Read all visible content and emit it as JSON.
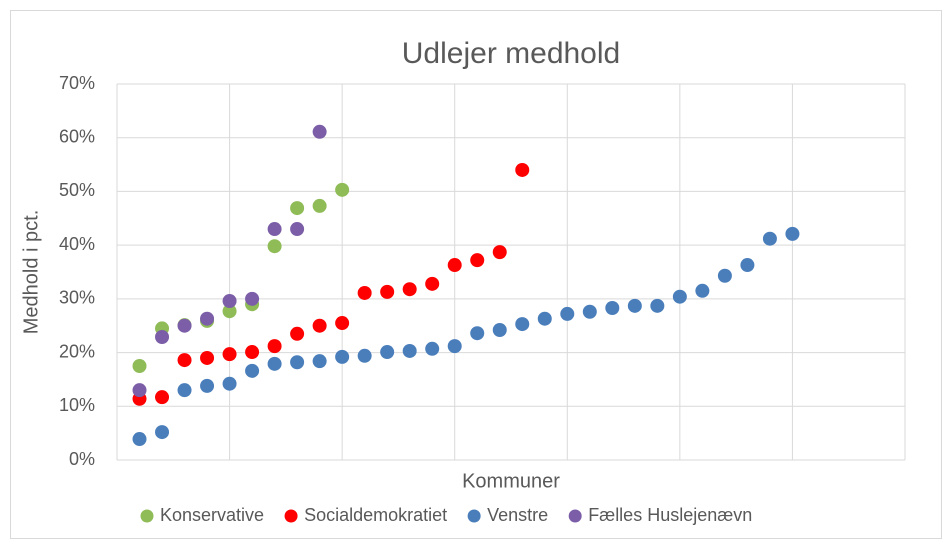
{
  "chart_data": {
    "type": "scatter",
    "title": "Udlejer medhold",
    "x_label": "Kommuner",
    "y_label": "Medhold i pct.",
    "xlim": [
      0,
      35
    ],
    "xticks": [
      0,
      5,
      10,
      15,
      20,
      25,
      30,
      35
    ],
    "ylim": [
      0,
      70
    ],
    "yticks": [
      {
        "value": 0,
        "label": "0%"
      },
      {
        "value": 10,
        "label": "10%"
      },
      {
        "value": 20,
        "label": "20%"
      },
      {
        "value": 30,
        "label": "30%"
      },
      {
        "value": 40,
        "label": "40%"
      },
      {
        "value": 50,
        "label": "50%"
      },
      {
        "value": 60,
        "label": "60%"
      },
      {
        "value": 70,
        "label": "70%"
      }
    ],
    "grid": true,
    "legend": "bottom",
    "series": [
      {
        "name": "Konservative",
        "color": "#8fbc57",
        "x": [
          1,
          2,
          3,
          4,
          5,
          6,
          7,
          8,
          9,
          10
        ],
        "values": [
          17.5,
          24.5,
          25.1,
          25.9,
          27.7,
          29.0,
          39.8,
          46.9,
          47.3,
          50.3
        ]
      },
      {
        "name": "Socialdemokratiet",
        "color": "#ff0000",
        "x": [
          1,
          2,
          3,
          4,
          5,
          6,
          7,
          8,
          9,
          10,
          11,
          12,
          13,
          14,
          15,
          16,
          17,
          18
        ],
        "values": [
          11.4,
          11.7,
          18.6,
          19.0,
          19.7,
          20.1,
          21.2,
          23.5,
          25.0,
          25.5,
          31.1,
          31.3,
          31.8,
          32.8,
          36.3,
          37.2,
          38.7,
          54.0
        ]
      },
      {
        "name": "Venstre",
        "color": "#4a7ebb",
        "x": [
          1,
          2,
          3,
          4,
          5,
          6,
          7,
          8,
          9,
          10,
          11,
          12,
          13,
          14,
          15,
          16,
          17,
          18,
          19,
          20,
          21,
          22,
          23,
          24,
          25,
          26,
          27,
          28,
          29,
          30
        ],
        "values": [
          3.9,
          5.2,
          13.0,
          13.8,
          14.2,
          16.6,
          17.9,
          18.2,
          18.4,
          19.2,
          19.4,
          20.1,
          20.3,
          20.7,
          21.2,
          23.6,
          24.2,
          25.3,
          26.3,
          27.2,
          27.6,
          28.3,
          28.7,
          28.7,
          30.4,
          31.5,
          34.3,
          36.3,
          41.2,
          42.1
        ]
      },
      {
        "name": "Fælles Huslejenævn",
        "color": "#7b5ea7",
        "x": [
          1,
          2,
          3,
          4,
          5,
          6,
          7,
          8,
          9
        ],
        "values": [
          13.0,
          22.9,
          25.0,
          26.3,
          29.6,
          30.0,
          43.0,
          43.0,
          61.1
        ]
      }
    ]
  }
}
